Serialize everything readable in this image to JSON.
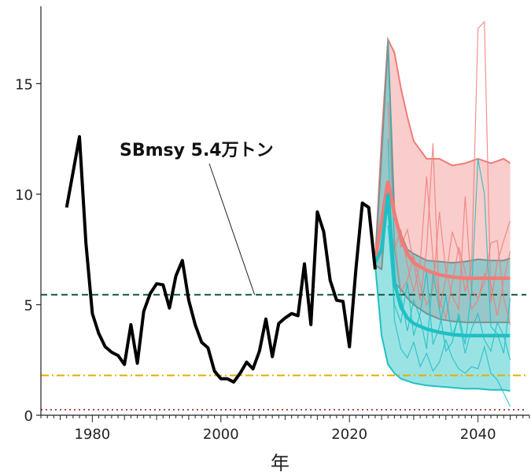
{
  "chart_data": {
    "type": "line",
    "title": "",
    "xlabel": "年",
    "ylabel": "",
    "xlim": [
      1972,
      2048
    ],
    "ylim": [
      0,
      18.5
    ],
    "x_ticks": [
      1980,
      2000,
      2020,
      2040
    ],
    "y_ticks": [
      0,
      5,
      10,
      15
    ],
    "grid": false,
    "legend": "none",
    "annotation": {
      "text": "SBmsy 5.4万トン",
      "x": 2005,
      "y": 5.45
    },
    "reference_lines": [
      {
        "y": 5.45,
        "color": "#0f5a3c",
        "style": "dashed"
      },
      {
        "y": 1.8,
        "color": "#e6ad00",
        "style": "dashdot"
      },
      {
        "y": 0.25,
        "color": "#b04848",
        "style": "dotted"
      }
    ],
    "colors": {
      "historical": "#000000",
      "scenario_a": "#f07c78",
      "scenario_b": "#1fc0c4",
      "band_outline": "#7f9090"
    },
    "series": [
      {
        "role": "historical",
        "x": [
          1976,
          1977,
          1978,
          1979,
          1980,
          1981,
          1982,
          1983,
          1984,
          1985,
          1986,
          1987,
          1988,
          1989,
          1990,
          1991,
          1992,
          1993,
          1994,
          1995,
          1996,
          1997,
          1998,
          1999,
          2000,
          2001,
          2002,
          2003,
          2004,
          2005,
          2006,
          2007,
          2008,
          2009,
          2010,
          2011,
          2012,
          2013,
          2014,
          2015,
          2016,
          2017,
          2018,
          2019,
          2020,
          2021,
          2022,
          2023,
          2024
        ],
        "values": [
          9.4,
          11.0,
          12.6,
          7.8,
          4.6,
          3.7,
          3.1,
          2.85,
          2.7,
          2.3,
          4.1,
          2.35,
          4.7,
          5.5,
          5.95,
          5.9,
          4.85,
          6.3,
          7.0,
          5.2,
          4.1,
          3.3,
          3.05,
          2.0,
          1.65,
          1.65,
          1.5,
          1.9,
          2.4,
          2.1,
          2.9,
          4.35,
          2.65,
          4.15,
          4.4,
          4.6,
          4.5,
          6.85,
          4.1,
          9.2,
          8.3,
          6.1,
          5.2,
          5.15,
          3.1,
          6.6,
          9.6,
          9.4,
          6.6
        ]
      },
      {
        "role": "scenario_a",
        "x": [
          2024,
          2025,
          2026,
          2027,
          2028,
          2029,
          2030,
          2032,
          2034,
          2036,
          2038,
          2040,
          2042,
          2044,
          2045
        ],
        "median": [
          7.0,
          8.8,
          10.6,
          9.1,
          8.0,
          7.3,
          6.9,
          6.55,
          6.35,
          6.25,
          6.2,
          6.2,
          6.2,
          6.2,
          6.2
        ],
        "upper": [
          7.0,
          12.5,
          17.0,
          16.4,
          14.8,
          13.5,
          12.4,
          11.6,
          11.6,
          11.3,
          11.4,
          11.6,
          11.4,
          11.6,
          11.4
        ],
        "lower": [
          6.8,
          6.6,
          10.3,
          6.0,
          5.7,
          5.3,
          5.0,
          4.6,
          4.35,
          4.25,
          4.2,
          4.2,
          4.2,
          4.2,
          4.2
        ]
      },
      {
        "role": "scenario_b",
        "x": [
          2024,
          2025,
          2026,
          2027,
          2028,
          2029,
          2030,
          2032,
          2034,
          2036,
          2038,
          2040,
          2042,
          2044,
          2045
        ],
        "median": [
          6.9,
          7.5,
          10.0,
          6.0,
          4.9,
          4.4,
          4.15,
          3.9,
          3.75,
          3.65,
          3.6,
          3.6,
          3.6,
          3.6,
          3.6
        ],
        "upper": [
          6.9,
          11.8,
          16.9,
          9.1,
          8.2,
          7.5,
          7.3,
          7.0,
          6.95,
          6.9,
          6.95,
          7.05,
          7.0,
          7.0,
          7.1
        ],
        "lower": [
          6.8,
          3.6,
          2.3,
          1.9,
          1.65,
          1.55,
          1.45,
          1.35,
          1.3,
          1.25,
          1.2,
          1.2,
          1.15,
          1.15,
          1.1
        ]
      }
    ],
    "sample_traces": [
      {
        "group": "scenario_a",
        "x": [
          2026,
          2027,
          2028,
          2029,
          2030,
          2031,
          2032,
          2033,
          2034,
          2035,
          2036,
          2037,
          2038,
          2039,
          2040,
          2041,
          2042,
          2043,
          2044,
          2045
        ],
        "values": [
          10.6,
          9.5,
          7.6,
          8.4,
          6.9,
          5.2,
          7.5,
          12.3,
          4.8,
          6.2,
          8.3,
          7.4,
          5.6,
          6.7,
          17.5,
          17.8,
          5.1,
          6.9,
          7.9,
          8.8
        ]
      },
      {
        "group": "scenario_a",
        "x": [
          2026,
          2027,
          2028,
          2029,
          2030,
          2031,
          2032,
          2033,
          2034,
          2035,
          2036,
          2037,
          2038,
          2039,
          2040,
          2041,
          2042,
          2043,
          2044,
          2045
        ],
        "values": [
          14.2,
          8.0,
          5.6,
          6.1,
          7.2,
          5.9,
          5.0,
          5.7,
          9.2,
          6.5,
          5.4,
          4.8,
          9.9,
          5.6,
          5.3,
          6.0,
          7.8,
          7.9,
          5.3,
          4.1
        ]
      },
      {
        "group": "scenario_a",
        "x": [
          2026,
          2027,
          2028,
          2029,
          2030,
          2031,
          2032,
          2033,
          2034,
          2035,
          2036,
          2037,
          2038,
          2039,
          2040,
          2041,
          2042,
          2043,
          2044,
          2045
        ],
        "values": [
          9.2,
          7.5,
          8.4,
          6.8,
          5.6,
          6.9,
          10.8,
          7.1,
          5.2,
          4.4,
          6.0,
          7.6,
          6.5,
          4.8,
          5.2,
          6.4,
          5.9,
          4.5,
          6.1,
          7.4
        ]
      },
      {
        "group": "scenario_b",
        "x": [
          2026,
          2027,
          2028,
          2029,
          2030,
          2031,
          2032,
          2033,
          2034,
          2035,
          2036,
          2037,
          2038,
          2039,
          2040,
          2041,
          2042,
          2043,
          2044,
          2045
        ],
        "values": [
          17.0,
          7.5,
          5.4,
          3.8,
          5.2,
          4.4,
          3.0,
          6.4,
          4.8,
          2.9,
          3.3,
          4.6,
          3.2,
          5.6,
          11.6,
          10.0,
          4.0,
          3.7,
          2.8,
          5.3
        ]
      },
      {
        "group": "scenario_b",
        "x": [
          2026,
          2027,
          2028,
          2029,
          2030,
          2031,
          2032,
          2033,
          2034,
          2035,
          2036,
          2037,
          2038,
          2039,
          2040,
          2041,
          2042,
          2043,
          2044,
          2045
        ],
        "values": [
          12.5,
          4.3,
          3.0,
          2.6,
          3.3,
          2.2,
          2.8,
          2.0,
          2.4,
          3.4,
          2.6,
          2.1,
          1.9,
          2.2,
          2.1,
          3.1,
          1.9,
          1.6,
          1.0,
          0.4
        ]
      },
      {
        "group": "scenario_b",
        "x": [
          2026,
          2027,
          2028,
          2029,
          2030,
          2031,
          2032,
          2033,
          2034,
          2035,
          2036,
          2037,
          2038,
          2039,
          2040,
          2041,
          2042,
          2043,
          2044,
          2045
        ],
        "values": [
          8.6,
          5.0,
          4.2,
          6.0,
          3.6,
          4.6,
          6.5,
          3.2,
          4.0,
          5.4,
          3.6,
          4.4,
          2.8,
          3.9,
          4.6,
          3.4,
          2.9,
          4.2,
          3.6,
          2.5
        ]
      }
    ]
  }
}
